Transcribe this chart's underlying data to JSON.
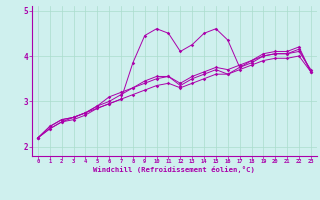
{
  "xlabel": "Windchill (Refroidissement éolien,°C)",
  "ylabel": "",
  "bg_color": "#cff0ee",
  "grid_color": "#aaddcc",
  "line_color": "#aa00aa",
  "spine_color": "#aa00aa",
  "xlim": [
    -0.5,
    23.5
  ],
  "ylim": [
    1.8,
    5.1
  ],
  "xticks": [
    0,
    1,
    2,
    3,
    4,
    5,
    6,
    7,
    8,
    9,
    10,
    11,
    12,
    13,
    14,
    15,
    16,
    17,
    18,
    19,
    20,
    21,
    22,
    23
  ],
  "yticks": [
    2,
    3,
    4,
    5
  ],
  "line1": [
    2.2,
    2.45,
    2.6,
    2.65,
    2.75,
    2.85,
    2.95,
    3.05,
    3.85,
    4.45,
    4.6,
    4.5,
    4.1,
    4.25,
    4.5,
    4.6,
    4.35,
    3.75,
    3.9,
    4.05,
    4.1,
    4.1,
    4.2,
    3.65
  ],
  "line2": [
    2.2,
    2.45,
    2.6,
    2.65,
    2.75,
    2.9,
    3.1,
    3.2,
    3.3,
    3.45,
    3.55,
    3.55,
    3.35,
    3.5,
    3.6,
    3.7,
    3.6,
    3.75,
    3.85,
    4.0,
    4.05,
    4.05,
    4.15,
    3.65
  ],
  "line3": [
    2.2,
    2.4,
    2.55,
    2.65,
    2.75,
    2.9,
    3.0,
    3.15,
    3.3,
    3.4,
    3.5,
    3.55,
    3.4,
    3.55,
    3.65,
    3.75,
    3.7,
    3.8,
    3.9,
    4.0,
    4.05,
    4.05,
    4.1,
    3.7
  ],
  "line4": [
    2.2,
    2.4,
    2.55,
    2.6,
    2.7,
    2.85,
    2.95,
    3.05,
    3.15,
    3.25,
    3.35,
    3.4,
    3.3,
    3.4,
    3.5,
    3.6,
    3.6,
    3.7,
    3.8,
    3.9,
    3.95,
    3.95,
    4.0,
    3.65
  ]
}
